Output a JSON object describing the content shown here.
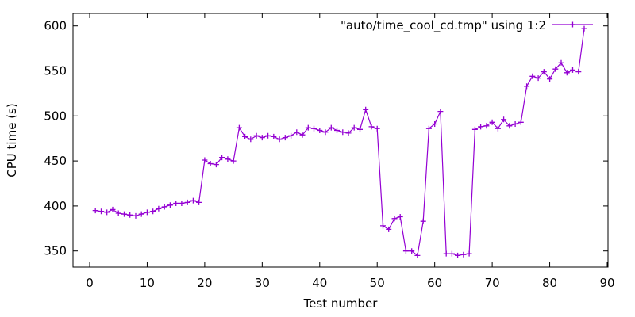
{
  "colors": {
    "line": "#9400d3",
    "axis": "#000000",
    "text": "#000000",
    "background": "#ffffff"
  },
  "chart_data": {
    "type": "line",
    "title": "",
    "xlabel": "Test number",
    "ylabel": "CPU time (s)",
    "x_ticks": [
      0,
      10,
      20,
      30,
      40,
      50,
      60,
      70,
      80,
      90
    ],
    "y_ticks": [
      350,
      400,
      450,
      500,
      550,
      600
    ],
    "xlim": [
      -3,
      90.2
    ],
    "ylim": [
      332,
      614
    ],
    "grid": false,
    "legend_position": "inside-top-right",
    "line_color": "#9400d3",
    "marker": "plus",
    "series": [
      {
        "name": "\"auto/time_cool_cd.tmp\" using 1:2",
        "x": [
          1,
          2,
          3,
          4,
          5,
          6,
          7,
          8,
          9,
          10,
          11,
          12,
          13,
          14,
          15,
          16,
          17,
          18,
          19,
          20,
          21,
          22,
          23,
          24,
          25,
          26,
          27,
          28,
          29,
          30,
          31,
          32,
          33,
          34,
          35,
          36,
          37,
          38,
          39,
          40,
          41,
          42,
          43,
          44,
          45,
          46,
          47,
          48,
          49,
          50,
          51,
          52,
          53,
          54,
          55,
          56,
          57,
          58,
          59,
          60,
          61,
          62,
          63,
          64,
          65,
          66,
          67,
          68,
          69,
          70,
          71,
          72,
          73,
          74,
          75,
          76,
          77,
          78,
          79,
          80,
          81,
          82,
          83,
          84,
          85,
          86
        ],
        "y": [
          395,
          394,
          393,
          396,
          392,
          391,
          390,
          389,
          391,
          393,
          394,
          397,
          399,
          401,
          403,
          403,
          404,
          406,
          404,
          451,
          447,
          446,
          454,
          452,
          450,
          487,
          477,
          474,
          478,
          476,
          478,
          477,
          474,
          476,
          478,
          482,
          479,
          487,
          486,
          484,
          482,
          487,
          484,
          482,
          481,
          487,
          485,
          507,
          488,
          486,
          378,
          374,
          386,
          388,
          350,
          350,
          345,
          383,
          486,
          491,
          505,
          347,
          347,
          345,
          346,
          347,
          485,
          488,
          489,
          493,
          486,
          496,
          489,
          491,
          493,
          533,
          544,
          542,
          549,
          541,
          552,
          559,
          548,
          551,
          549,
          597
        ]
      }
    ]
  }
}
